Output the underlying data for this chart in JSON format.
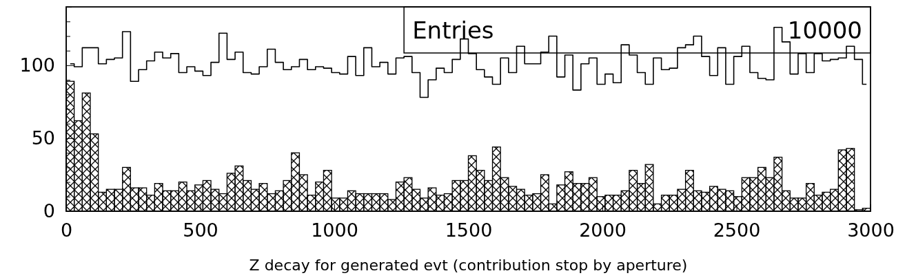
{
  "chart_data": {
    "type": "histogram",
    "xlabel": "Z decay for generated evt (contribution stop by aperture)",
    "annotations": [
      "Entries",
      "10000"
    ],
    "bins": [
      0,
      30,
      60,
      90,
      120,
      150,
      180,
      210,
      240,
      270,
      300,
      330,
      360,
      390,
      420,
      450,
      480,
      510,
      540,
      570,
      600,
      630,
      660,
      690,
      720,
      750,
      780,
      810,
      840,
      870,
      900,
      930,
      960,
      990,
      1020,
      1050,
      1080,
      1110,
      1140,
      1170,
      1200,
      1230,
      1260,
      1290,
      1320,
      1350,
      1380,
      1410,
      1440,
      1470,
      1500,
      1530,
      1560,
      1590,
      1620,
      1650,
      1680,
      1710,
      1740,
      1770,
      1800,
      1830,
      1860,
      1890,
      1920,
      1950,
      1980,
      2010,
      2040,
      2070,
      2100,
      2130,
      2160,
      2190,
      2220,
      2250,
      2280,
      2310,
      2340,
      2370,
      2400,
      2430,
      2460,
      2490,
      2520,
      2550,
      2580,
      2610,
      2640,
      2670,
      2700,
      2730,
      2760,
      2790,
      2820,
      2850,
      2880,
      2910,
      2940,
      2970,
      3000
    ],
    "series": [
      {
        "type": "step",
        "color": "#000000",
        "x": [
          15,
          45,
          75,
          105,
          135,
          165,
          195,
          225,
          255,
          285,
          315,
          345,
          375,
          405,
          435,
          465,
          495,
          525,
          555,
          585,
          615,
          645,
          675,
          705,
          735,
          765,
          795,
          825,
          855,
          885,
          915,
          945,
          975,
          1005,
          1035,
          1065,
          1095,
          1125,
          1155,
          1185,
          1215,
          1245,
          1275,
          1305,
          1335,
          1365,
          1395,
          1425,
          1455,
          1485,
          1515,
          1545,
          1575,
          1605,
          1635,
          1665,
          1695,
          1725,
          1755,
          1785,
          1815,
          1845,
          1875,
          1905,
          1935,
          1965,
          1995,
          2025,
          2055,
          2085,
          2115,
          2145,
          2175,
          2205,
          2235,
          2265,
          2295,
          2325,
          2355,
          2385,
          2415,
          2445,
          2475,
          2505,
          2535,
          2565,
          2595,
          2625,
          2655,
          2685,
          2715,
          2745,
          2775,
          2805,
          2835,
          2865,
          2895,
          2925,
          2955,
          2985
        ],
        "values": [
          101,
          99,
          112,
          112,
          101,
          104,
          105,
          123,
          89,
          97,
          103,
          109,
          105,
          108,
          95,
          99,
          96,
          93,
          102,
          122,
          104,
          109,
          95,
          94,
          99,
          111,
          102,
          97,
          99,
          104,
          97,
          99,
          98,
          95,
          94,
          106,
          93,
          112,
          99,
          102,
          94,
          105,
          106,
          95,
          78,
          90,
          98,
          95,
          104,
          118,
          108,
          97,
          92,
          87,
          105,
          95,
          113,
          101,
          101,
          109,
          120,
          92,
          107,
          83,
          101,
          105,
          87,
          94,
          88,
          114,
          107,
          95,
          87,
          105,
          97,
          98,
          112,
          114,
          120,
          106,
          93,
          112,
          87,
          106,
          113,
          95,
          91,
          90,
          126,
          116,
          94,
          108,
          95,
          108,
          103,
          104,
          105,
          113,
          104,
          87
        ]
      },
      {
        "type": "histogram",
        "color": "#000000",
        "values": [
          89,
          62,
          81,
          53,
          13,
          15,
          15,
          30,
          16,
          16,
          11,
          19,
          14,
          14,
          20,
          14,
          18,
          21,
          15,
          12,
          26,
          31,
          21,
          15,
          19,
          12,
          14,
          21,
          40,
          25,
          11,
          20,
          28,
          9,
          9,
          14,
          12,
          12,
          12,
          12,
          8,
          20,
          23,
          15,
          9,
          16,
          11,
          12,
          21,
          21,
          38,
          28,
          21,
          44,
          23,
          17,
          15,
          11,
          12,
          25,
          5,
          18,
          27,
          19,
          19,
          23,
          10,
          11,
          11,
          14,
          28,
          19,
          32,
          5,
          11,
          11,
          15,
          28,
          14,
          13,
          17,
          15,
          14,
          10,
          23,
          23,
          30,
          23,
          37,
          14,
          9,
          9,
          19,
          11,
          13,
          15,
          42,
          43,
          1,
          2
        ]
      }
    ],
    "xlim": [
      0,
      3000
    ],
    "xticks": [
      0,
      500,
      1000,
      1500,
      2000,
      2500,
      3000
    ],
    "ylim": [
      0,
      140
    ],
    "yticks": [
      0,
      {
        "value": 10,
        "label": null
      },
      {
        "value": 20,
        "label": null
      },
      {
        "value": 30,
        "label": null
      },
      {
        "value": 40,
        "label": null
      },
      50,
      {
        "value": 60,
        "label": null
      },
      {
        "value": 70,
        "label": null
      },
      {
        "value": 80,
        "label": null
      },
      {
        "value": 90,
        "label": null
      },
      100,
      {
        "value": 110,
        "label": null
      },
      {
        "value": 120,
        "label": null
      },
      {
        "value": 130,
        "label": null
      },
      {
        "value": 140,
        "label": null
      }
    ]
  }
}
